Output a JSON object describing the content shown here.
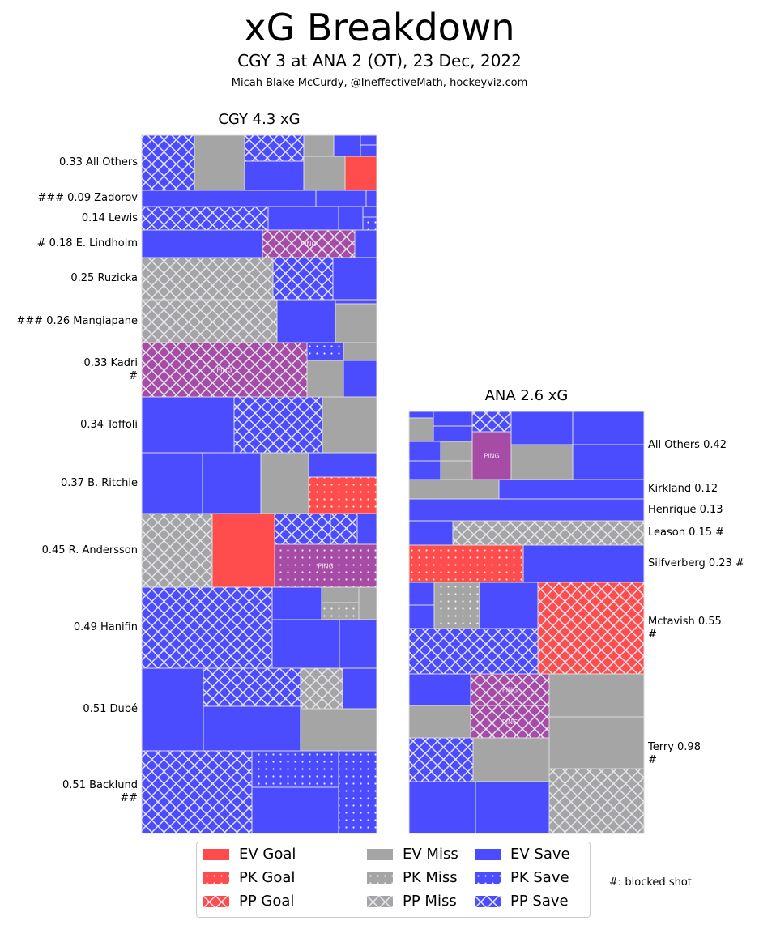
{
  "header": {
    "title": "xG Breakdown",
    "subtitle": "CGY 3 at ANA 2 (OT), 23 Dec, 2022",
    "credit": "Micah Blake McCurdy, @IneffectiveMath, hockeyviz.com"
  },
  "colors": {
    "goal": "#ff4c4c",
    "miss": "#a5a5a5",
    "save": "#4c4cff",
    "ping": "#a64ca6",
    "edge": "#dcdcdc"
  },
  "chart_data": {
    "type": "treemap",
    "title": "xG Breakdown",
    "teams": [
      {
        "label": "CGY 4.3 xG",
        "team": "CGY",
        "xg": 4.3,
        "players": [
          {
            "label": "0.33 All Others",
            "xg": 0.33,
            "blocked": 0,
            "shots": [
              "PP Save",
              "EV Miss",
              "PP Save",
              "EV Save",
              "EV Miss",
              "EV Save",
              "EV Save",
              "EV Save",
              "EV Miss",
              "EV Goal"
            ]
          },
          {
            "label": "### 0.09 Zadorov",
            "xg": 0.09,
            "blocked": 3,
            "shots": [
              "EV Save",
              "EV Save",
              "EV Save"
            ]
          },
          {
            "label": "0.14 Lewis",
            "xg": 0.14,
            "blocked": 0,
            "shots": [
              "PP Save",
              "EV Save",
              "EV Save",
              "EV Save",
              "PK Save"
            ]
          },
          {
            "label": "# 0.18 E. Lindholm",
            "xg": 0.18,
            "blocked": 1,
            "shots": [
              "EV Save",
              "PP Ping",
              "EV Save"
            ]
          },
          {
            "label": "0.25 Ruzicka",
            "xg": 0.25,
            "blocked": 0,
            "shots": [
              "PP Miss",
              "PP Save",
              "EV Save"
            ]
          },
          {
            "label": "### 0.26 Mangiapane",
            "xg": 0.26,
            "blocked": 3,
            "shots": [
              "PP Miss",
              "EV Save",
              "EV Save",
              "EV Miss"
            ]
          },
          {
            "label": "0.33 Kadri\n#",
            "xg": 0.33,
            "blocked": 1,
            "shots": [
              "PP Ping",
              "PK Save",
              "EV Miss",
              "EV Miss",
              "EV Save"
            ]
          },
          {
            "label": "0.34 Toffoli",
            "xg": 0.34,
            "blocked": 0,
            "shots": [
              "EV Save",
              "PP Save",
              "EV Miss"
            ]
          },
          {
            "label": "0.37 B. Ritchie",
            "xg": 0.37,
            "blocked": 0,
            "shots": [
              "EV Save",
              "EV Save",
              "EV Miss",
              "EV Save",
              "PK Goal"
            ]
          },
          {
            "label": "0.45 R. Andersson",
            "xg": 0.45,
            "blocked": 0,
            "shots": [
              "PP Miss",
              "EV Goal",
              "PP Save",
              "PP Save",
              "EV Save",
              "PK Ping"
            ]
          },
          {
            "label": "0.49 Hanifin",
            "xg": 0.49,
            "blocked": 0,
            "shots": [
              "PP Save",
              "EV Save",
              "EV Miss",
              "PK Miss",
              "EV Miss",
              "EV Save",
              "EV Save"
            ]
          },
          {
            "label": "0.51 Dubé",
            "xg": 0.51,
            "blocked": 0,
            "shots": [
              "EV Save",
              "PP Save",
              "PP Miss",
              "EV Save",
              "EV Save",
              "EV Miss"
            ]
          },
          {
            "label": "0.51 Backlund\n##",
            "xg": 0.51,
            "blocked": 2,
            "shots": [
              "PP Save",
              "PK Save",
              "EV Save",
              "PK Save"
            ]
          }
        ]
      },
      {
        "label": "ANA 2.6 xG",
        "team": "ANA",
        "xg": 2.6,
        "players": [
          {
            "label": "All Others 0.42",
            "xg": 0.42,
            "blocked": 0,
            "shots": [
              "EV Save",
              "EV Miss",
              "EV Save",
              "EV Save",
              "EV Save",
              "EV Miss",
              "EV Save",
              "EV Miss",
              "PP Save",
              "EV Ping",
              "EV Save",
              "EV Save",
              "EV Miss",
              "EV Save"
            ]
          },
          {
            "label": "Kirkland 0.12",
            "xg": 0.12,
            "blocked": 0,
            "shots": [
              "EV Miss",
              "EV Save"
            ]
          },
          {
            "label": "Henrique 0.13",
            "xg": 0.13,
            "blocked": 0,
            "shots": [
              "EV Save"
            ]
          },
          {
            "label": "Leason 0.15 #",
            "xg": 0.15,
            "blocked": 1,
            "shots": [
              "EV Save",
              "PP Miss"
            ]
          },
          {
            "label": "Silfverberg 0.23 #",
            "xg": 0.23,
            "blocked": 1,
            "shots": [
              "PK Goal",
              "EV Save"
            ]
          },
          {
            "label": "Mctavish 0.55\n#",
            "xg": 0.55,
            "blocked": 1,
            "shots": [
              "EV Save",
              "EV Save",
              "PK Miss",
              "EV Save",
              "PP Save",
              "PP Goal"
            ]
          },
          {
            "label": "Terry 0.98\n#",
            "xg": 0.98,
            "blocked": 1,
            "shots": [
              "EV Save",
              "PP Ping",
              "EV Miss",
              "PP Ping",
              "PP Save",
              "EV Miss",
              "EV Save",
              "EV Save",
              "EV Miss",
              "EV Miss",
              "PP Miss"
            ]
          }
        ]
      }
    ],
    "ping_label": "PING",
    "legend": [
      {
        "label": "EV Goal",
        "kind": "goal",
        "strength": "EV"
      },
      {
        "label": "PK Goal",
        "kind": "goal",
        "strength": "PK"
      },
      {
        "label": "PP Goal",
        "kind": "goal",
        "strength": "PP"
      },
      {
        "label": "EV Miss",
        "kind": "miss",
        "strength": "EV"
      },
      {
        "label": "PK Miss",
        "kind": "miss",
        "strength": "PK"
      },
      {
        "label": "PP Miss",
        "kind": "miss",
        "strength": "PP"
      },
      {
        "label": "EV Save",
        "kind": "save",
        "strength": "EV"
      },
      {
        "label": "PK Save",
        "kind": "save",
        "strength": "PK"
      },
      {
        "label": "PP Save",
        "kind": "save",
        "strength": "PP"
      }
    ],
    "legend_placement": "bottom-center",
    "note": "#: blocked shot"
  }
}
